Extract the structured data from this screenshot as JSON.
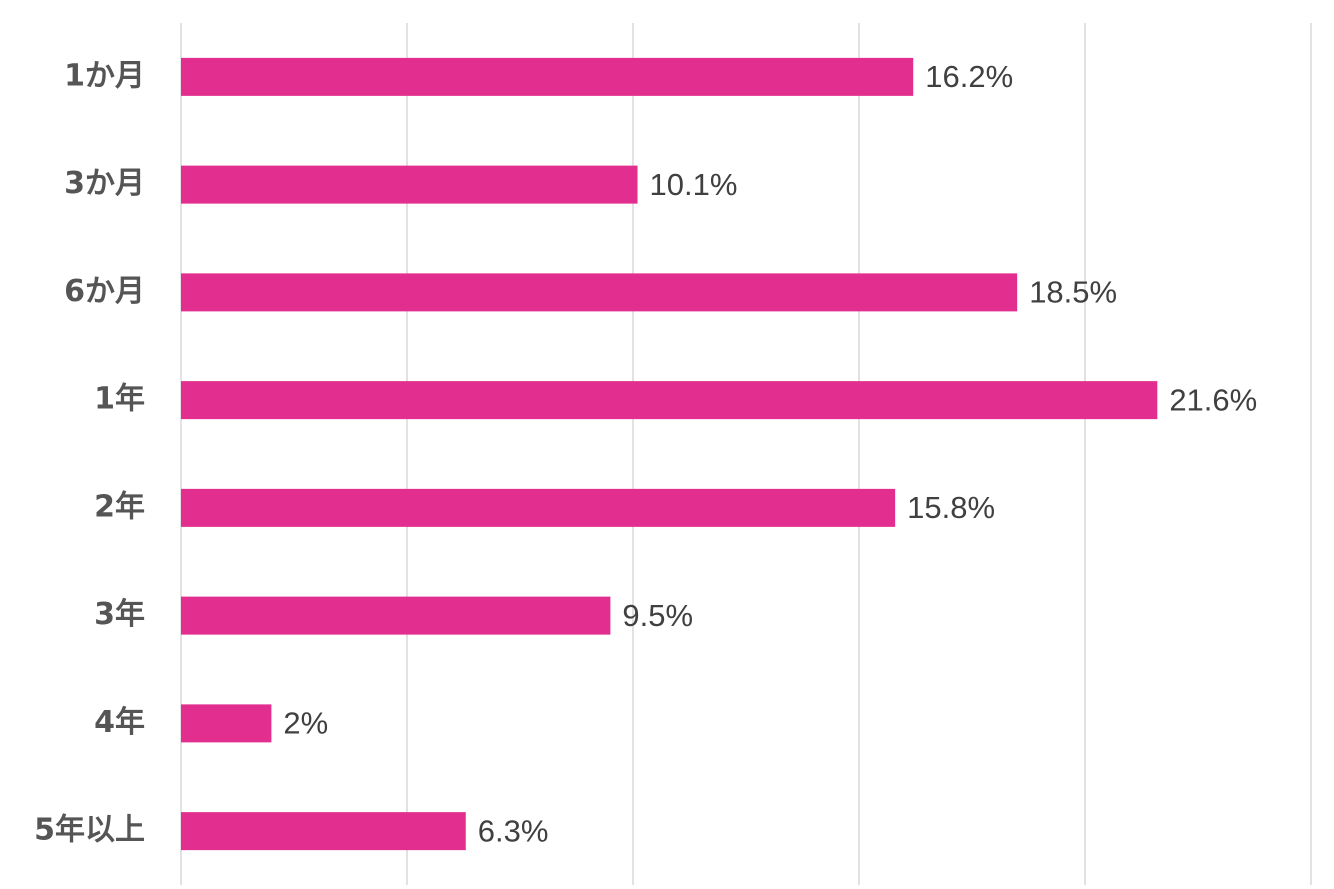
{
  "chart_data": {
    "type": "bar",
    "orientation": "horizontal",
    "categories": [
      "1か月",
      "3か月",
      "6か月",
      "1年",
      "2年",
      "3年",
      "4年",
      "5年以上"
    ],
    "values": [
      16.2,
      10.1,
      18.5,
      21.6,
      15.8,
      9.5,
      2,
      6.3
    ],
    "value_labels": [
      "16.2%",
      "10.1%",
      "18.5%",
      "21.6%",
      "15.8%",
      "9.5%",
      "2%",
      "6.3%"
    ],
    "color": "#e22e8e",
    "xlim": [
      0,
      25
    ],
    "xticks": [
      0,
      5,
      10,
      15,
      20,
      25
    ],
    "grid": true
  }
}
